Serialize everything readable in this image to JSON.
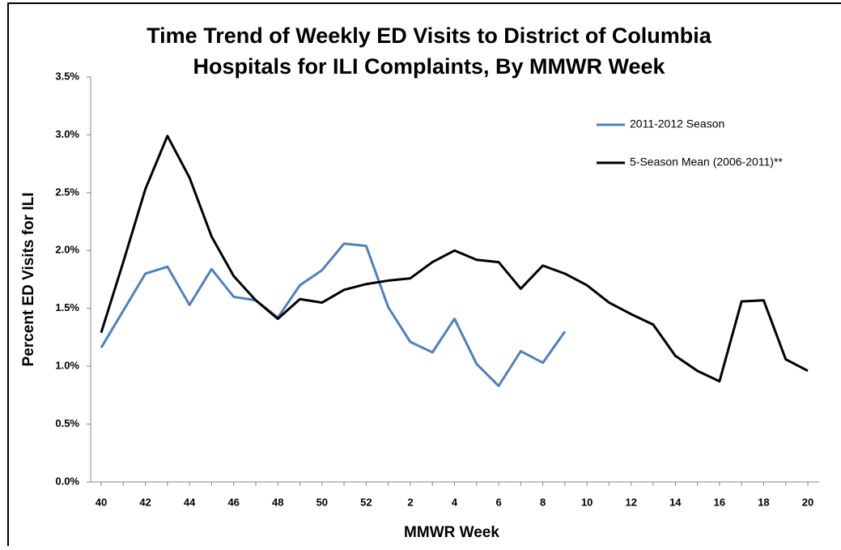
{
  "chart_data": {
    "type": "line",
    "title": [
      "Time Trend of Weekly ED Visits to District of Columbia",
      "Hospitals for ILI Complaints, By MMWR Week"
    ],
    "xlabel": "MMWR Week",
    "ylabel": "Percent ED Visits for ILI",
    "categories": [
      "40",
      null,
      "42",
      null,
      "44",
      null,
      "46",
      null,
      "48",
      null,
      "50",
      null,
      "52",
      null,
      "2",
      null,
      "4",
      null,
      "6",
      null,
      "8",
      null,
      "10",
      null,
      "12",
      null,
      "14",
      null,
      "16",
      null,
      "18",
      null,
      "20"
    ],
    "series": [
      {
        "name": "2011-2012 Season",
        "color": "#4f81bd",
        "values": [
          1.16,
          1.48,
          1.8,
          1.86,
          1.53,
          1.84,
          1.6,
          1.57,
          1.42,
          1.7,
          1.83,
          2.06,
          2.04,
          1.51,
          1.21,
          1.12,
          1.41,
          1.02,
          0.83,
          1.13,
          1.03,
          1.3,
          null,
          null,
          null,
          null,
          null,
          null,
          null,
          null,
          null,
          null,
          null
        ]
      },
      {
        "name": "5-Season Mean (2006-2011)**",
        "color": "#000000",
        "values": [
          1.29,
          1.9,
          2.53,
          2.99,
          2.63,
          2.12,
          1.78,
          1.57,
          1.41,
          1.58,
          1.55,
          1.66,
          1.71,
          1.74,
          1.76,
          1.9,
          2.0,
          1.92,
          1.9,
          1.67,
          1.87,
          1.8,
          1.7,
          1.55,
          1.45,
          1.36,
          1.09,
          0.96,
          0.87,
          1.56,
          1.57,
          1.06,
          0.96
        ]
      }
    ],
    "ylim": [
      0,
      3.5
    ],
    "yticks": [
      {
        "value": 0,
        "label": "0.0%"
      },
      {
        "value": 0.5,
        "label": "0.5%"
      },
      {
        "value": 1,
        "label": "1.0%"
      },
      {
        "value": 1.5,
        "label": "1.5%"
      },
      {
        "value": 2,
        "label": "2.0%"
      },
      {
        "value": 2.5,
        "label": "2.5%"
      },
      {
        "value": 3,
        "label": "3.0%"
      },
      {
        "value": 3.5,
        "label": "3.5%"
      }
    ],
    "grid": false,
    "legend": "upper right"
  }
}
